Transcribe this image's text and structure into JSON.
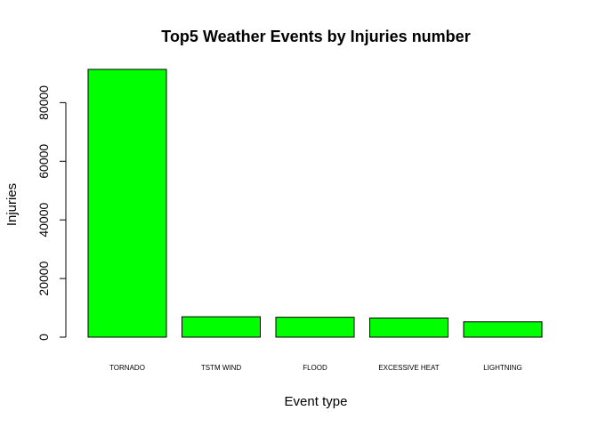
{
  "chart_data": {
    "type": "bar",
    "title": "Top5 Weather Events by Injuries number",
    "xlabel": "Event type",
    "ylabel": "Injuries",
    "categories": [
      "TORNADO",
      "TSTM WIND",
      "FLOOD",
      "EXCESSIVE HEAT",
      "LIGHTNING"
    ],
    "values": [
      91346,
      6957,
      6789,
      6525,
      5230
    ],
    "ylim": [
      0,
      91346
    ],
    "yticks": [
      0,
      20000,
      40000,
      60000,
      80000
    ],
    "bar_color": "#00FF00",
    "bar_border": "#000000",
    "grid": false,
    "legend": "none"
  }
}
